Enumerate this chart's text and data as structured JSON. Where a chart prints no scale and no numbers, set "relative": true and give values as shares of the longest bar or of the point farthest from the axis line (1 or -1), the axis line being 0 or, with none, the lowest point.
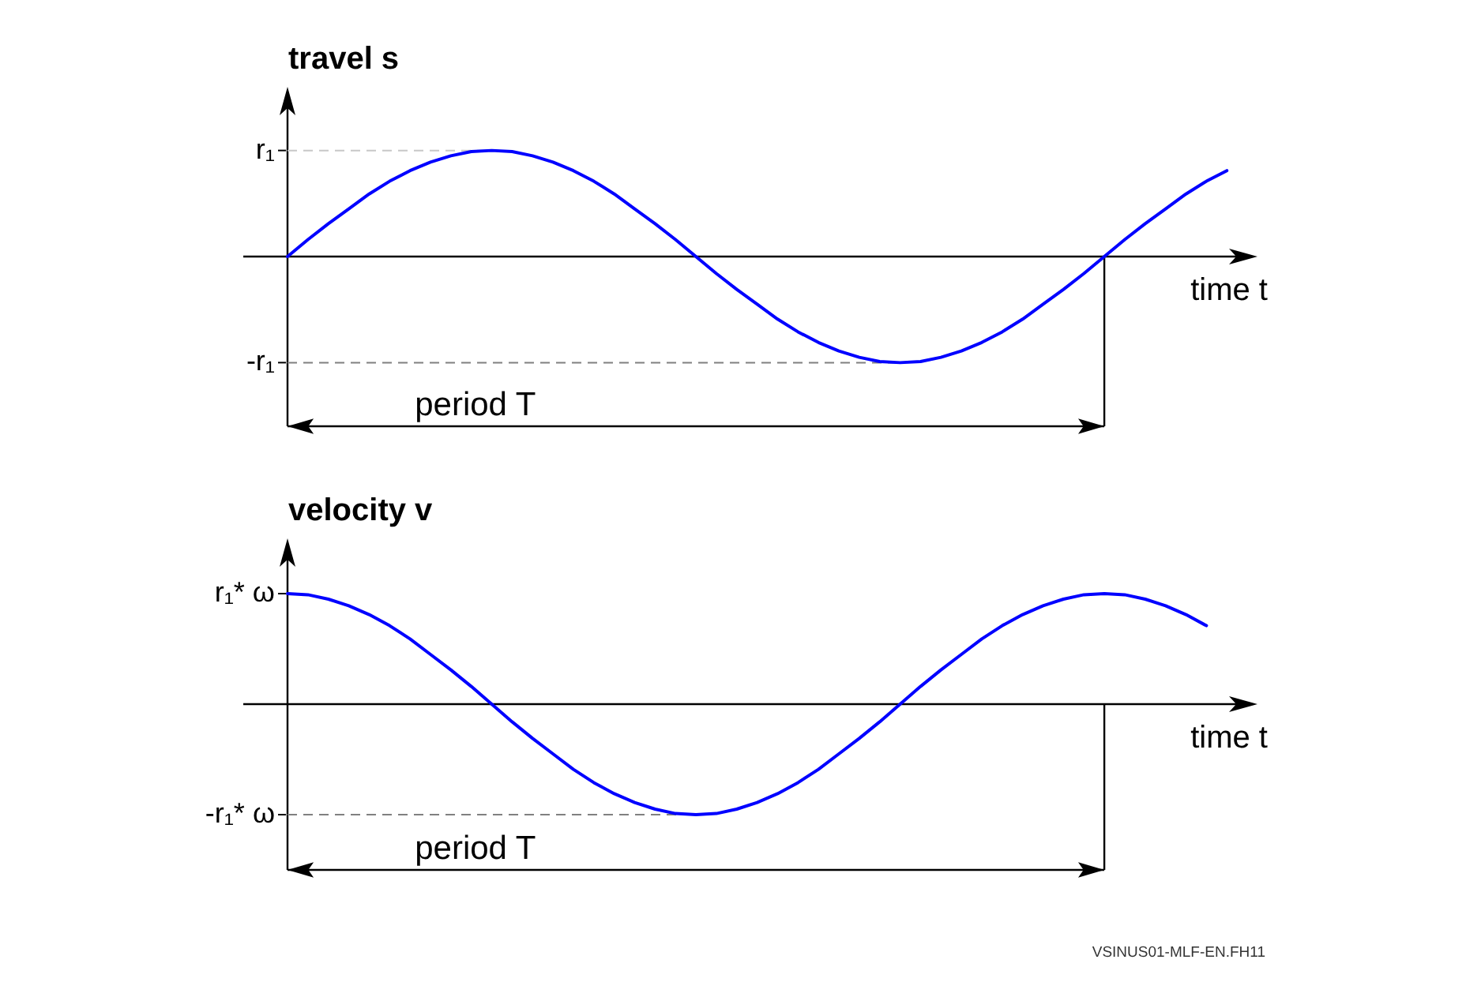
{
  "chart_data": [
    {
      "type": "line",
      "relative": true,
      "ylabel": "travel s",
      "xlabel": "time t",
      "categories": [
        null,
        null,
        null,
        null,
        null,
        null,
        null,
        null,
        null,
        null,
        null,
        null,
        null,
        null,
        null,
        null,
        null,
        null,
        null,
        null,
        null,
        null,
        null,
        null,
        null,
        null,
        null,
        null,
        null,
        null,
        null,
        null,
        null,
        null,
        null,
        null,
        null,
        null,
        null,
        null,
        null,
        null,
        null,
        null,
        null,
        null,
        null
      ],
      "series": [
        {
          "color": "#0000ff",
          "values": [
            0,
            0.16,
            0.31,
            0.45,
            0.59,
            0.71,
            0.81,
            0.89,
            0.95,
            0.99,
            1,
            0.99,
            0.95,
            0.89,
            0.81,
            0.71,
            0.59,
            0.45,
            0.31,
            0.16,
            0,
            -0.16,
            -0.31,
            -0.45,
            -0.59,
            -0.71,
            -0.81,
            -0.89,
            -0.95,
            -0.99,
            -1,
            -0.99,
            -0.95,
            -0.89,
            -0.81,
            -0.71,
            -0.59,
            -0.45,
            -0.31,
            -0.16,
            0,
            0.16,
            0.31,
            0.45,
            0.59,
            0.71,
            0.81
          ]
        }
      ],
      "ref_lines": [
        {
          "axis": "y",
          "value": 1,
          "label": "r₁",
          "line_style": "dashed",
          "color": "#c8c8c8"
        },
        {
          "axis": "y",
          "value": -1,
          "label": "-r₁",
          "line_style": "dashed",
          "color": "#808080"
        }
      ],
      "annotations": [
        "period T"
      ]
    },
    {
      "type": "line",
      "relative": true,
      "ylabel": "velocity v",
      "xlabel": "time t",
      "categories": [
        null,
        null,
        null,
        null,
        null,
        null,
        null,
        null,
        null,
        null,
        null,
        null,
        null,
        null,
        null,
        null,
        null,
        null,
        null,
        null,
        null,
        null,
        null,
        null,
        null,
        null,
        null,
        null,
        null,
        null,
        null,
        null,
        null,
        null,
        null,
        null,
        null,
        null,
        null,
        null,
        null,
        null,
        null,
        null,
        null,
        null
      ],
      "series": [
        {
          "color": "#0000ff",
          "values": [
            1,
            0.99,
            0.95,
            0.89,
            0.81,
            0.71,
            0.59,
            0.45,
            0.31,
            0.16,
            0,
            -0.16,
            -0.31,
            -0.45,
            -0.59,
            -0.71,
            -0.81,
            -0.89,
            -0.95,
            -0.99,
            -1,
            -0.99,
            -0.95,
            -0.89,
            -0.81,
            -0.71,
            -0.59,
            -0.45,
            -0.31,
            -0.16,
            0,
            0.16,
            0.31,
            0.45,
            0.59,
            0.71,
            0.81,
            0.89,
            0.95,
            0.99,
            1,
            0.99,
            0.95,
            0.89,
            0.81,
            0.71
          ]
        }
      ],
      "ref_lines": [
        {
          "axis": "y",
          "value": 1,
          "label": "r₁* ω"
        },
        {
          "axis": "y",
          "value": -1,
          "label": "-r₁* ω",
          "line_style": "dashed",
          "color": "#808080"
        }
      ],
      "annotations": [
        "period T",
        "VSINUS01-MLF-EN.FH11"
      ]
    }
  ]
}
